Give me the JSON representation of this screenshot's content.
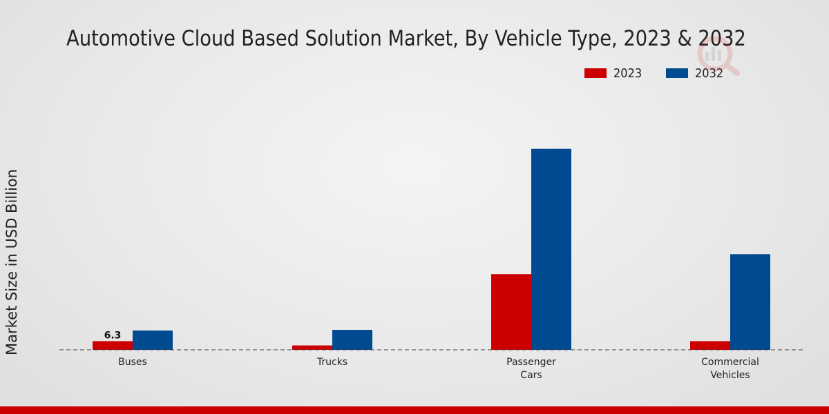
{
  "chart_data": {
    "type": "bar",
    "title": "Automotive Cloud Based Solution Market, By Vehicle Type, 2023 & 2032",
    "xlabel": "",
    "ylabel": "Market Size in USD Billion",
    "categories": [
      "Buses",
      "Trucks",
      "Passenger Cars",
      "Commercial Vehicles"
    ],
    "category_lines": [
      [
        "Buses"
      ],
      [
        "Trucks"
      ],
      [
        "Passenger",
        "Cars"
      ],
      [
        "Commercial",
        "Vehicles"
      ]
    ],
    "series": [
      {
        "name": "2023",
        "color": "#cc0000",
        "values": [
          6.3,
          3.2,
          55.0,
          6.3
        ]
      },
      {
        "name": "2032",
        "color": "#004a8f",
        "values": [
          14.0,
          14.5,
          146.0,
          69.5
        ]
      }
    ],
    "annotations": [
      {
        "series": "2023",
        "category": "Buses",
        "label": "6.3"
      }
    ],
    "ylim": [
      0,
      210
    ],
    "grid": false,
    "legend_position": "top-right"
  },
  "colors": {
    "accent_bar": "#cc0000"
  }
}
